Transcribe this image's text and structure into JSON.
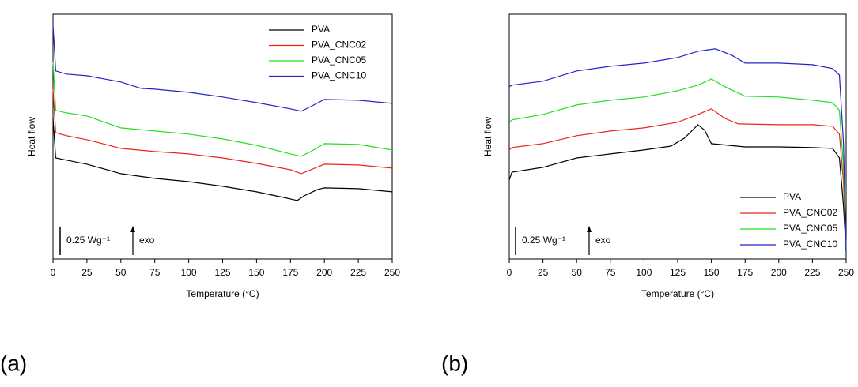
{
  "chart_data": [
    {
      "type": "line",
      "panel_label": "(a)",
      "xlabel": "Temperature (°C)",
      "ylabel": "Heat flow",
      "xlim": [
        0,
        250
      ],
      "xticks": [
        0,
        25,
        50,
        75,
        100,
        125,
        150,
        175,
        200,
        225,
        250
      ],
      "ylim": [
        0,
        2.15
      ],
      "legend": "upper right",
      "scale_bar": {
        "label": "0.25 Wg⁻¹",
        "value": 0.25
      },
      "arrow_label": "exo",
      "series": [
        {
          "name": "PVA",
          "color": "#000000",
          "x": [
            0,
            2,
            10,
            25,
            50,
            75,
            100,
            125,
            150,
            170,
            180,
            185,
            195,
            200,
            225,
            250
          ],
          "values": [
            1.235,
            0.888,
            0.868,
            0.833,
            0.75,
            0.708,
            0.68,
            0.639,
            0.59,
            0.541,
            0.514,
            0.555,
            0.611,
            0.625,
            0.618,
            0.59
          ]
        },
        {
          "name": "PVA_CNC02",
          "color": "#e8261c",
          "x": [
            0,
            2,
            10,
            25,
            50,
            75,
            100,
            125,
            150,
            175,
            183,
            190,
            200,
            225,
            250
          ],
          "values": [
            1.492,
            1.11,
            1.083,
            1.048,
            0.972,
            0.944,
            0.923,
            0.888,
            0.84,
            0.784,
            0.75,
            0.784,
            0.833,
            0.826,
            0.798
          ]
        },
        {
          "name": "PVA_CNC05",
          "color": "#22e022",
          "x": [
            0,
            2,
            10,
            25,
            50,
            75,
            100,
            125,
            150,
            175,
            183,
            190,
            200,
            225,
            250
          ],
          "values": [
            1.735,
            1.305,
            1.284,
            1.256,
            1.152,
            1.124,
            1.097,
            1.055,
            0.999,
            0.923,
            0.902,
            0.944,
            1.013,
            1.006,
            0.958
          ]
        },
        {
          "name": "PVA_CNC10",
          "color": "#2323c8",
          "x": [
            0,
            2,
            10,
            25,
            50,
            65,
            75,
            100,
            125,
            150,
            175,
            183,
            190,
            200,
            225,
            250
          ],
          "values": [
            2.054,
            1.652,
            1.624,
            1.61,
            1.555,
            1.499,
            1.492,
            1.464,
            1.423,
            1.374,
            1.319,
            1.298,
            1.339,
            1.402,
            1.395,
            1.367
          ]
        }
      ]
    },
    {
      "type": "line",
      "panel_label": "(b)",
      "xlabel": "Temperature (°C)",
      "ylabel": "Heat flow",
      "xlim": [
        0,
        250
      ],
      "xticks": [
        0,
        25,
        50,
        75,
        100,
        125,
        150,
        175,
        200,
        225,
        250
      ],
      "ylim": [
        0,
        2.15
      ],
      "legend": "lower right",
      "scale_bar": {
        "label": "0.25 Wg⁻¹",
        "value": 0.25
      },
      "arrow_label": "exo",
      "series": [
        {
          "name": "PVA",
          "color": "#000000",
          "x": [
            0,
            2,
            25,
            50,
            75,
            100,
            120,
            130,
            140,
            145,
            150,
            175,
            200,
            225,
            240,
            245,
            248,
            250
          ],
          "values": [
            0.694,
            0.763,
            0.805,
            0.888,
            0.923,
            0.958,
            0.992,
            1.062,
            1.18,
            1.131,
            1.013,
            0.985,
            0.985,
            0.979,
            0.972,
            0.888,
            0.472,
            0.069
          ]
        },
        {
          "name": "PVA_CNC02",
          "color": "#e8261c",
          "x": [
            0,
            2,
            25,
            50,
            75,
            100,
            125,
            140,
            150,
            160,
            170,
            200,
            225,
            240,
            245,
            248,
            250
          ],
          "values": [
            0.958,
            0.979,
            1.013,
            1.083,
            1.124,
            1.152,
            1.201,
            1.27,
            1.319,
            1.235,
            1.187,
            1.18,
            1.18,
            1.166,
            1.097,
            0.68,
            0.069
          ]
        },
        {
          "name": "PVA_CNC05",
          "color": "#22e022",
          "x": [
            0,
            2,
            25,
            50,
            75,
            100,
            125,
            140,
            150,
            160,
            175,
            200,
            225,
            240,
            245,
            248,
            250
          ],
          "values": [
            1.201,
            1.222,
            1.27,
            1.353,
            1.395,
            1.423,
            1.478,
            1.527,
            1.582,
            1.513,
            1.43,
            1.423,
            1.395,
            1.374,
            1.305,
            0.819,
            0.069
          ]
        },
        {
          "name": "PVA_CNC10",
          "color": "#2323c8",
          "x": [
            0,
            2,
            25,
            50,
            75,
            100,
            125,
            140,
            153,
            165,
            175,
            200,
            225,
            240,
            245,
            248,
            250
          ],
          "values": [
            1.513,
            1.527,
            1.562,
            1.652,
            1.693,
            1.721,
            1.77,
            1.825,
            1.846,
            1.791,
            1.721,
            1.721,
            1.707,
            1.673,
            1.617,
            1.027,
            0.069
          ]
        }
      ]
    }
  ]
}
